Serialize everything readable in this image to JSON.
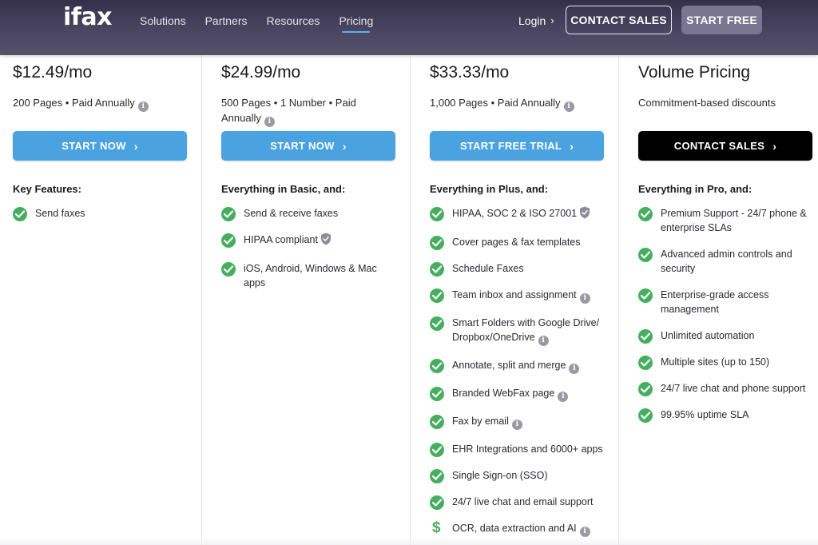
{
  "header": {
    "logo": "ifax",
    "nav": [
      "Solutions",
      "Partners",
      "Resources",
      "Pricing"
    ],
    "active_nav": "Pricing",
    "login": "Login",
    "contact_sales": "CONTACT SALES",
    "start_free": "START FREE"
  },
  "plans": [
    {
      "price": "$12.49/mo",
      "subtitle": "200 Pages • Paid Annually",
      "subtitle_info": true,
      "cta": "START NOW",
      "cta_color": "#4ba2e0",
      "features_heading": "Key Features:",
      "features": [
        {
          "text": "Send faxes",
          "info": false,
          "shield": false,
          "icon": "check-icon"
        }
      ]
    },
    {
      "price": "$24.99/mo",
      "subtitle": "500 Pages • 1 Number • Paid Annually",
      "subtitle_info": true,
      "cta": "START NOW",
      "cta_color": "#4ba2e0",
      "features_heading": "Everything in Basic, and:",
      "features": [
        {
          "text": "Send & receive faxes",
          "info": false,
          "shield": false,
          "icon": "check-icon"
        },
        {
          "text": "HIPAA compliant",
          "info": false,
          "shield": true,
          "icon": "check-icon"
        },
        {
          "text": "iOS, Android, Windows & Mac apps",
          "info": false,
          "shield": false,
          "icon": "check-icon"
        }
      ]
    },
    {
      "price": "$33.33/mo",
      "subtitle": "1,000 Pages • Paid Annually",
      "subtitle_info": true,
      "cta": "START FREE TRIAL",
      "cta_color": "#4ba2e0",
      "features_heading": "Everything in Plus, and:",
      "features": [
        {
          "text": "HIPAA, SOC 2 & ISO 27001",
          "info": false,
          "shield": true,
          "icon": "check-icon"
        },
        {
          "text": "Cover pages & fax templates",
          "info": false,
          "shield": false,
          "icon": "check-icon"
        },
        {
          "text": "Schedule Faxes",
          "info": false,
          "shield": false,
          "icon": "check-icon"
        },
        {
          "text": "Team inbox and assignment",
          "info": true,
          "shield": false,
          "icon": "check-icon"
        },
        {
          "text": "Smart Folders with Google Drive/ Dropbox/OneDrive",
          "info": true,
          "shield": false,
          "icon": "check-icon"
        },
        {
          "text": "Annotate, split and merge",
          "info": true,
          "shield": false,
          "icon": "check-icon"
        },
        {
          "text": "Branded WebFax page",
          "info": true,
          "shield": false,
          "icon": "check-icon"
        },
        {
          "text": "Fax by email",
          "info": true,
          "shield": false,
          "icon": "check-icon"
        },
        {
          "text": "EHR Integrations and 6000+ apps",
          "info": false,
          "shield": false,
          "icon": "check-icon"
        },
        {
          "text": "Single Sign-on (SSO)",
          "info": false,
          "shield": false,
          "icon": "check-icon"
        },
        {
          "text": "24/7 live chat and email support",
          "info": false,
          "shield": false,
          "icon": "check-icon"
        },
        {
          "text": "OCR, data extraction and AI",
          "info": true,
          "shield": false,
          "icon": "dollar-icon"
        }
      ]
    },
    {
      "price": "Volume Pricing",
      "subtitle": "Commitment-based discounts",
      "subtitle_info": false,
      "cta": "CONTACT SALES",
      "cta_color": "#000000",
      "features_heading": "Everything in Pro, and:",
      "features": [
        {
          "text": "Premium Support - 24/7 phone & enterprise SLAs",
          "info": false,
          "shield": false,
          "icon": "check-icon"
        },
        {
          "text": "Advanced admin controls and security",
          "info": false,
          "shield": false,
          "icon": "check-icon"
        },
        {
          "text": "Enterprise-grade access management",
          "info": false,
          "shield": false,
          "icon": "check-icon"
        },
        {
          "text": "Unlimited automation",
          "info": false,
          "shield": false,
          "icon": "check-icon"
        },
        {
          "text": "Multiple sites (up to 150)",
          "info": false,
          "shield": false,
          "icon": "check-icon"
        },
        {
          "text": "24/7 live chat and phone support",
          "info": false,
          "shield": false,
          "icon": "check-icon"
        },
        {
          "text": "99.95% uptime SLA",
          "info": false,
          "shield": false,
          "icon": "check-icon"
        }
      ]
    }
  ]
}
